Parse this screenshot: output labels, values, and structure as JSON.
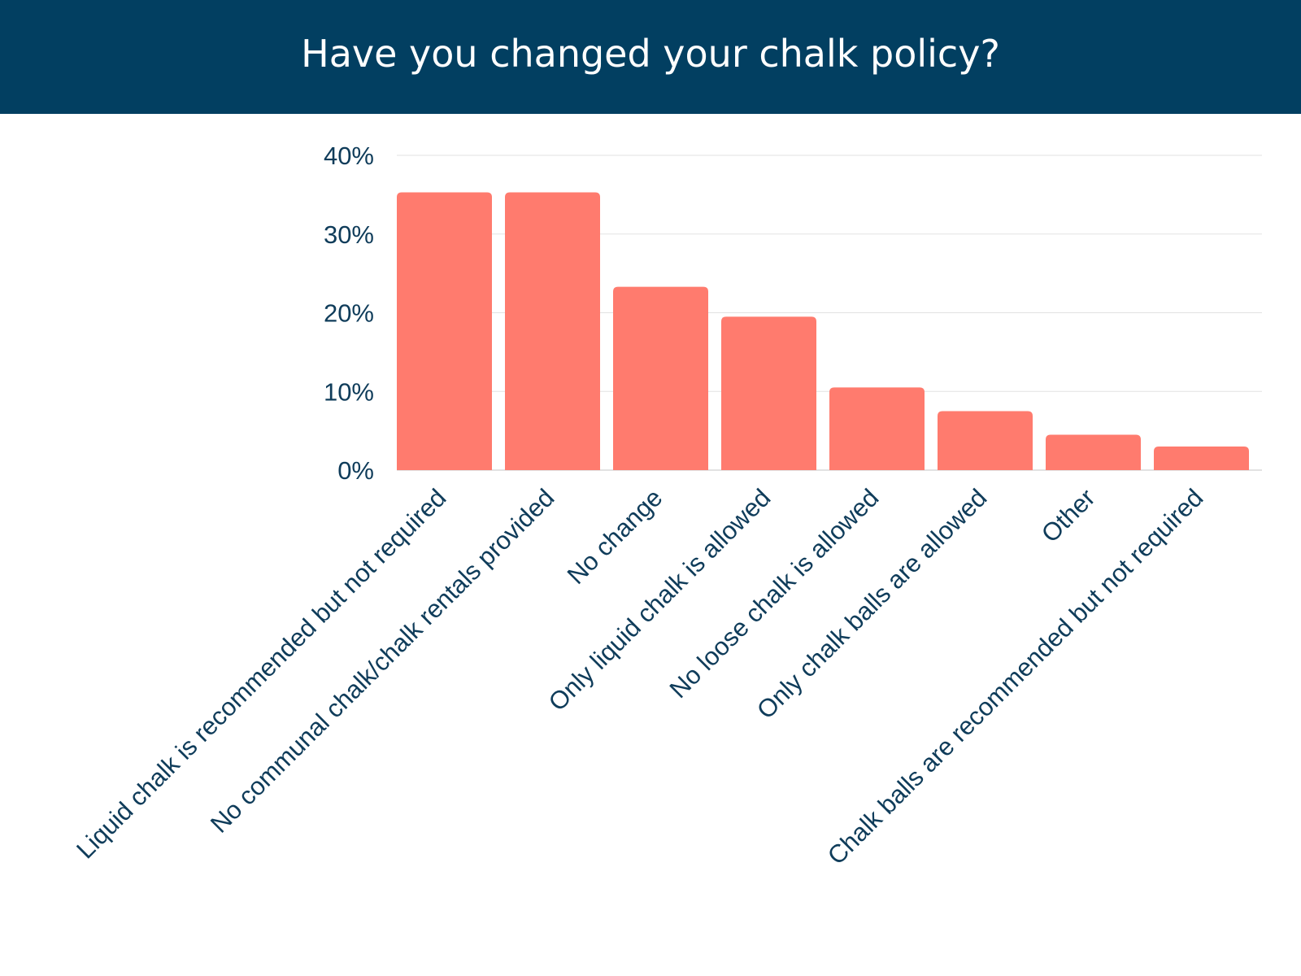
{
  "chart_data": {
    "type": "bar",
    "title": "Have you changed your chalk policy?",
    "xlabel": "",
    "ylabel": "",
    "categories": [
      "Liquid chalk is recommended but not required",
      "No communal chalk/chalk rentals provided",
      "No change",
      "Only liquid chalk is allowed",
      "No loose chalk is allowed",
      "Only chalk balls are allowed",
      "Other",
      "Chalk balls are recommended but not required"
    ],
    "values": [
      35.3,
      35.3,
      23.3,
      19.5,
      10.5,
      7.5,
      4.5,
      3.0
    ],
    "ylim": [
      0,
      40
    ],
    "yticks": [
      {
        "value": 0,
        "label": "0%"
      },
      {
        "value": 10,
        "label": "10%"
      },
      {
        "value": 20,
        "label": "20%"
      },
      {
        "value": 30,
        "label": "30%"
      },
      {
        "value": 40,
        "label": "40%"
      }
    ],
    "grid": true,
    "legend": "none",
    "colors": {
      "bar": "#ff7b6e",
      "header": "#023f61",
      "text": "#0f3c5a",
      "grid": "#e2e2e2"
    }
  }
}
